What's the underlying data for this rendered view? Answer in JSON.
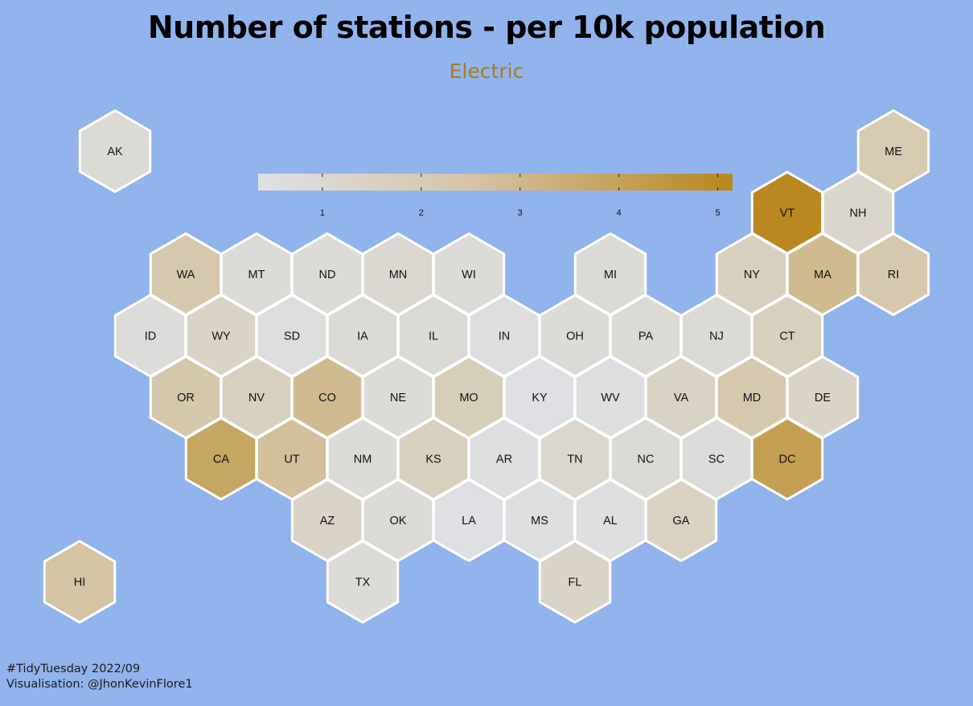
{
  "header": {
    "title": "Number of stations - per 10k population",
    "subtitle": "Electric"
  },
  "legend": {
    "ticks": [
      1,
      2,
      3,
      4,
      5
    ],
    "range": [
      0.35,
      5.15
    ],
    "colors": [
      "#dee1e4",
      "#d4c4a4",
      "#b8871e"
    ]
  },
  "colors": {
    "background": "#92b4ed",
    "hex_stroke": "#ffffff",
    "accent": "#a97c16"
  },
  "chart_data": {
    "type": "heatmap",
    "title": "Number of stations - per 10k population",
    "subtitle": "Electric",
    "value_range": [
      0.35,
      5.15
    ],
    "cells": [
      {
        "state": "AK",
        "row": 0,
        "col": 0,
        "value": 0.9
      },
      {
        "state": "ME",
        "row": 0,
        "col": 11,
        "value": 2.1
      },
      {
        "state": "VT",
        "row": 1,
        "col": 10,
        "value": 5.1
      },
      {
        "state": "NH",
        "row": 1,
        "col": 11,
        "value": 1.2
      },
      {
        "state": "WA",
        "row": 2,
        "col": 1,
        "value": 2.2
      },
      {
        "state": "MT",
        "row": 2,
        "col": 2,
        "value": 0.8
      },
      {
        "state": "ND",
        "row": 2,
        "col": 3,
        "value": 0.8
      },
      {
        "state": "MN",
        "row": 2,
        "col": 4,
        "value": 1.0
      },
      {
        "state": "WI",
        "row": 2,
        "col": 5,
        "value": 0.8
      },
      {
        "state": "MI",
        "row": 2,
        "col": 7,
        "value": 0.9
      },
      {
        "state": "NY",
        "row": 2,
        "col": 9,
        "value": 1.6
      },
      {
        "state": "MA",
        "row": 2,
        "col": 10,
        "value": 2.9
      },
      {
        "state": "RI",
        "row": 2,
        "col": 11,
        "value": 2.2
      },
      {
        "state": "ID",
        "row": 3,
        "col": 1,
        "value": 0.7
      },
      {
        "state": "WY",
        "row": 3,
        "col": 2,
        "value": 1.3
      },
      {
        "state": "SD",
        "row": 3,
        "col": 3,
        "value": 0.6
      },
      {
        "state": "IA",
        "row": 3,
        "col": 4,
        "value": 0.9
      },
      {
        "state": "IL",
        "row": 3,
        "col": 5,
        "value": 0.9
      },
      {
        "state": "IN",
        "row": 3,
        "col": 6,
        "value": 0.6
      },
      {
        "state": "OH",
        "row": 3,
        "col": 7,
        "value": 0.8
      },
      {
        "state": "PA",
        "row": 3,
        "col": 8,
        "value": 0.9
      },
      {
        "state": "NJ",
        "row": 3,
        "col": 9,
        "value": 0.9
      },
      {
        "state": "CT",
        "row": 3,
        "col": 10,
        "value": 1.7
      },
      {
        "state": "OR",
        "row": 4,
        "col": 1,
        "value": 2.3
      },
      {
        "state": "NV",
        "row": 4,
        "col": 2,
        "value": 1.6
      },
      {
        "state": "CO",
        "row": 4,
        "col": 3,
        "value": 2.9
      },
      {
        "state": "NE",
        "row": 4,
        "col": 4,
        "value": 0.8
      },
      {
        "state": "MO",
        "row": 4,
        "col": 5,
        "value": 1.8
      },
      {
        "state": "KY",
        "row": 4,
        "col": 6,
        "value": 0.4
      },
      {
        "state": "WV",
        "row": 4,
        "col": 7,
        "value": 0.5
      },
      {
        "state": "VA",
        "row": 4,
        "col": 8,
        "value": 1.4
      },
      {
        "state": "MD",
        "row": 4,
        "col": 9,
        "value": 2.2
      },
      {
        "state": "DE",
        "row": 4,
        "col": 10,
        "value": 1.3
      },
      {
        "state": "CA",
        "row": 5,
        "col": 2,
        "value": 3.8
      },
      {
        "state": "UT",
        "row": 5,
        "col": 3,
        "value": 2.7
      },
      {
        "state": "NM",
        "row": 5,
        "col": 4,
        "value": 0.8
      },
      {
        "state": "KS",
        "row": 5,
        "col": 5,
        "value": 1.6
      },
      {
        "state": "AR",
        "row": 5,
        "col": 6,
        "value": 0.5
      },
      {
        "state": "TN",
        "row": 5,
        "col": 7,
        "value": 1.1
      },
      {
        "state": "NC",
        "row": 5,
        "col": 8,
        "value": 0.9
      },
      {
        "state": "SC",
        "row": 5,
        "col": 9,
        "value": 0.7
      },
      {
        "state": "DC",
        "row": 5,
        "col": 10,
        "value": 4.1
      },
      {
        "state": "AZ",
        "row": 6,
        "col": 3,
        "value": 1.3
      },
      {
        "state": "OK",
        "row": 6,
        "col": 4,
        "value": 0.8
      },
      {
        "state": "LA",
        "row": 6,
        "col": 5,
        "value": 0.4
      },
      {
        "state": "MS",
        "row": 6,
        "col": 6,
        "value": 0.5
      },
      {
        "state": "AL",
        "row": 6,
        "col": 7,
        "value": 0.5
      },
      {
        "state": "GA",
        "row": 6,
        "col": 8,
        "value": 1.5
      },
      {
        "state": "TX",
        "row": 7,
        "col": 4,
        "value": 0.8
      },
      {
        "state": "FL",
        "row": 7,
        "col": 7,
        "value": 1.3
      },
      {
        "state": "HI",
        "row": 7,
        "col": 0,
        "value": 2.5
      }
    ]
  },
  "caption": {
    "line1": "#TidyTuesday 2022/09",
    "line2": "Visualisation: @JhonKevinFlore1"
  }
}
